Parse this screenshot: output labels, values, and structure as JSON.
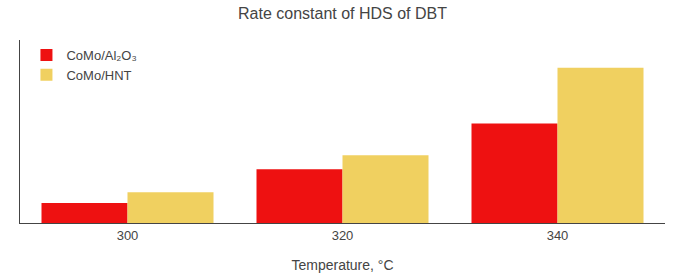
{
  "chart_data": {
    "type": "bar",
    "title": "Rate constant of HDS of DBT",
    "xlabel": "Temperature, °C",
    "categories": [
      300,
      320,
      340
    ],
    "series": [
      {
        "name": "CoMo/Al₂O₃",
        "color": "#ee1111",
        "values": [
          1.0,
          2.7,
          5.0
        ]
      },
      {
        "name": "CoMo/HNT",
        "color": "#f0d060",
        "values": [
          1.55,
          3.4,
          7.8
        ]
      }
    ],
    "ylim": [
      0,
      9.2
    ],
    "grid": false,
    "legend": "upper left",
    "tick_labels": "x"
  }
}
